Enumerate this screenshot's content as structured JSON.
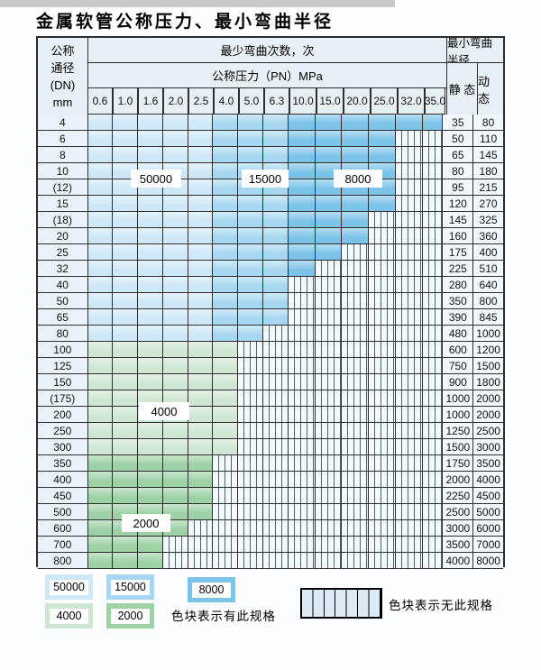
{
  "page": {
    "title": "金属软管公称压力、最小弯曲半径"
  },
  "table": {
    "dn_header_lines": [
      "公称",
      "通径",
      "(DN)",
      "mm"
    ],
    "cycles_header": "最少弯曲次数，次",
    "pressure_header": "公称压力（PN）MPa",
    "radius_header": "最小弯曲半径",
    "static_header": "静 态",
    "dynamic_header": "动 态",
    "pressure_columns": [
      "0.6",
      "1.0",
      "1.6",
      "2.0",
      "2.5",
      "4.0",
      "5.0",
      "6.3",
      "10.0",
      "15.0",
      "20.0",
      "25.0",
      "32.0",
      "35.0"
    ],
    "rows": [
      {
        "dn": "4",
        "spec_cols": 14,
        "static": "35",
        "dynamic": "80"
      },
      {
        "dn": "6",
        "spec_cols": 12,
        "static": "50",
        "dynamic": "110"
      },
      {
        "dn": "8",
        "spec_cols": 12,
        "static": "65",
        "dynamic": "145"
      },
      {
        "dn": "10",
        "spec_cols": 12,
        "static": "80",
        "dynamic": "180"
      },
      {
        "dn": "(12)",
        "spec_cols": 12,
        "static": "95",
        "dynamic": "215"
      },
      {
        "dn": "15",
        "spec_cols": 12,
        "static": "120",
        "dynamic": "270"
      },
      {
        "dn": "(18)",
        "spec_cols": 11,
        "static": "145",
        "dynamic": "325"
      },
      {
        "dn": "20",
        "spec_cols": 11,
        "static": "160",
        "dynamic": "360"
      },
      {
        "dn": "25",
        "spec_cols": 10,
        "static": "175",
        "dynamic": "400"
      },
      {
        "dn": "32",
        "spec_cols": 9,
        "static": "225",
        "dynamic": "510"
      },
      {
        "dn": "40",
        "spec_cols": 8,
        "static": "280",
        "dynamic": "640"
      },
      {
        "dn": "50",
        "spec_cols": 8,
        "static": "350",
        "dynamic": "800"
      },
      {
        "dn": "65",
        "spec_cols": 8,
        "static": "390",
        "dynamic": "845"
      },
      {
        "dn": "80",
        "spec_cols": 7,
        "static": "480",
        "dynamic": "1000"
      },
      {
        "dn": "100",
        "spec_cols": 6,
        "static": "600",
        "dynamic": "1200"
      },
      {
        "dn": "125",
        "spec_cols": 6,
        "static": "750",
        "dynamic": "1500"
      },
      {
        "dn": "150",
        "spec_cols": 6,
        "static": "900",
        "dynamic": "1800"
      },
      {
        "dn": "(175)",
        "spec_cols": 6,
        "static": "1000",
        "dynamic": "2000"
      },
      {
        "dn": "200",
        "spec_cols": 6,
        "static": "1000",
        "dynamic": "2000"
      },
      {
        "dn": "250",
        "spec_cols": 6,
        "static": "1250",
        "dynamic": "2500"
      },
      {
        "dn": "300",
        "spec_cols": 6,
        "static": "1500",
        "dynamic": "3000"
      },
      {
        "dn": "350",
        "spec_cols": 5,
        "static": "1750",
        "dynamic": "3500"
      },
      {
        "dn": "400",
        "spec_cols": 5,
        "static": "2000",
        "dynamic": "4000"
      },
      {
        "dn": "450",
        "spec_cols": 5,
        "static": "2250",
        "dynamic": "4500"
      },
      {
        "dn": "500",
        "spec_cols": 5,
        "static": "2500",
        "dynamic": "5000"
      },
      {
        "dn": "600",
        "spec_cols": 4,
        "static": "3000",
        "dynamic": "6000"
      },
      {
        "dn": "700",
        "spec_cols": 3,
        "static": "3500",
        "dynamic": "7000"
      },
      {
        "dn": "800",
        "spec_cols": 3,
        "static": "4000",
        "dynamic": "8000"
      }
    ],
    "cycle_labels": [
      "50000",
      "15000",
      "8000",
      "4000",
      "2000"
    ]
  },
  "legend": {
    "swatches": [
      {
        "label": "50000",
        "color_key": "c50000"
      },
      {
        "label": "15000",
        "color_key": "c15000"
      },
      {
        "label": "8000",
        "color_key": "c8000"
      },
      {
        "label": "4000",
        "color_key": "c4000"
      },
      {
        "label": "2000",
        "color_key": "c2000"
      }
    ],
    "has_spec_text": "色块表示有此规格",
    "no_spec_text": "色块表示无此规格"
  },
  "colors": {
    "c50000": "#cfe8f7",
    "c15000": "#a8d8f1",
    "c8000": "#7cc3e9",
    "c4000": "#cfe7d2",
    "c2000": "#9dd2a6",
    "header_bg": "#e7eff7",
    "label_bg": "#eaf2f9",
    "value_bg": "#f2f7fb",
    "stripe_bg": "#f3f8fb",
    "stripe_line": "#4e6370",
    "stripe_sample_bg": "#dceaf5"
  }
}
